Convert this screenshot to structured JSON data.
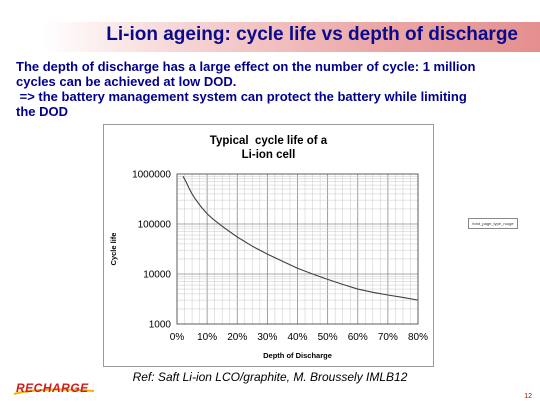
{
  "slide": {
    "title": "Li-ion ageing: cycle life vs depth of discharge",
    "intro_lines": [
      "The depth of discharge has a large effect on the number of cycle: 1 million",
      "cycles can be achieved at low DOD.",
      " => the battery management system can protect the battery while limiting",
      "the DOD"
    ],
    "reference": "Ref: Saft Li-ion LCO/graphite, M. Broussely IMLB12",
    "logo_text": "RECHARGE",
    "page_number": "12",
    "side_tag": "fond_page_type_rouge"
  },
  "chart_data": {
    "type": "line",
    "title_lines": [
      "Typical  cycle life of a",
      "Li-ion cell"
    ],
    "xlabel": "Depth of Discharge",
    "ylabel": "Cycle life",
    "x_ticks": [
      "0%",
      "10%",
      "20%",
      "30%",
      "40%",
      "50%",
      "60%",
      "70%",
      "80%"
    ],
    "y_ticks": [
      "1000",
      "10000",
      "100000",
      "1000000"
    ],
    "xlim": [
      0,
      80
    ],
    "ylim": [
      1000,
      1000000
    ],
    "y_scale": "log",
    "grid": true,
    "series": [
      {
        "color": "#404040",
        "x": [
          2,
          3,
          4,
          5,
          6,
          8,
          10,
          12,
          15,
          20,
          25,
          30,
          35,
          40,
          45,
          50,
          55,
          60,
          65,
          70,
          75,
          80
        ],
        "y": [
          900000,
          700000,
          520000,
          400000,
          320000,
          220000,
          160000,
          125000,
          90000,
          55000,
          36000,
          25000,
          18000,
          13000,
          10000,
          7800,
          6200,
          5000,
          4300,
          3800,
          3400,
          3000
        ]
      }
    ]
  },
  "colors": {
    "title_text": "#0a0a8c",
    "body_text": "#00008b",
    "accent_red": "#d01c1c"
  }
}
